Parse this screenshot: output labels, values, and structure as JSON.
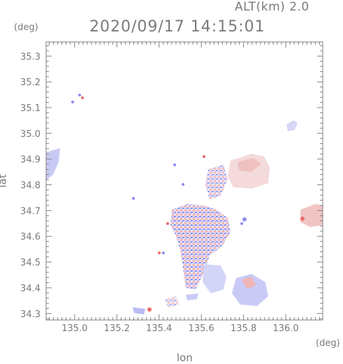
{
  "header": {
    "altitude": "ALT(km)  2.0",
    "datetime": "2020/09/17 14:15:01"
  },
  "axes": {
    "x_unit": "(deg)",
    "y_unit": "(deg)",
    "xlabel": "lon",
    "ylabel": "lat",
    "xlim": [
      134.865,
      136.175
    ],
    "ylim": [
      34.275,
      35.355
    ],
    "xticks": [
      "135.0",
      "135.2",
      "135.4",
      "135.6",
      "135.8",
      "136.0"
    ],
    "yticks": [
      "34.3",
      "34.4",
      "34.5",
      "34.6",
      "34.7",
      "34.8",
      "34.9",
      "35.0",
      "35.1",
      "35.2",
      "35.3"
    ]
  },
  "colors": {
    "frame": "#808080",
    "approaching": "#7a7cf0",
    "receding": "#ee6a6a",
    "weak": "#d4d6f5"
  }
}
